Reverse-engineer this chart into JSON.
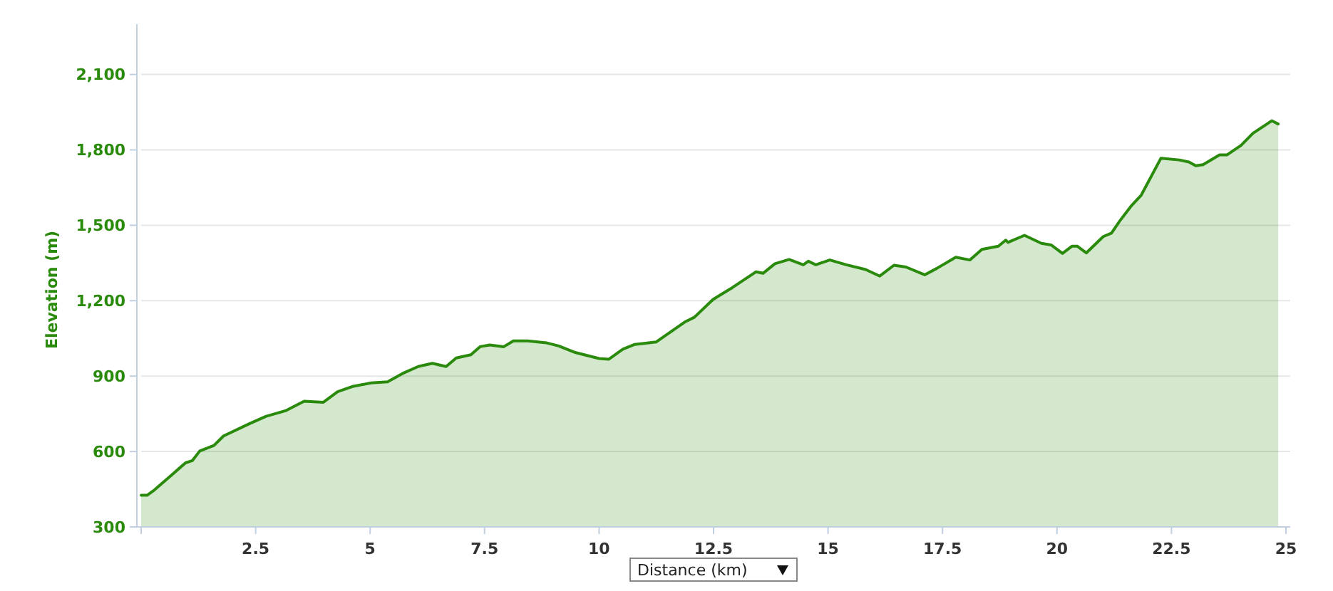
{
  "chart_data": {
    "type": "area",
    "xlabel": "Distance (km)",
    "ylabel": "Elevation (m)",
    "xlim": [
      0,
      25
    ],
    "xticks": [
      {
        "value": 0,
        "label": null
      },
      2.5,
      5,
      7.5,
      10,
      12.5,
      15,
      17.5,
      20,
      22.5,
      25
    ],
    "ylim": [
      300,
      2300
    ],
    "yticks": [
      {
        "value": 300,
        "label": "300"
      },
      {
        "value": 600,
        "label": "600"
      },
      {
        "value": 900,
        "label": "900"
      },
      {
        "value": 1200,
        "label": "1,200"
      },
      {
        "value": 1500,
        "label": "1,500"
      },
      {
        "value": 1800,
        "label": "1,800"
      },
      {
        "value": 2100,
        "label": "2,100"
      }
    ],
    "grid": "y",
    "x": [
      0,
      0.13,
      0.29,
      0.65,
      0.97,
      1.12,
      1.28,
      1.59,
      1.8,
      2.37,
      2.73,
      3.15,
      3.56,
      3.98,
      4.29,
      4.6,
      5.02,
      5.38,
      5.74,
      6.05,
      6.36,
      6.66,
      6.88,
      7.2,
      7.4,
      7.61,
      7.92,
      8.13,
      8.44,
      8.86,
      9.12,
      9.48,
      10,
      10.21,
      10.52,
      10.78,
      11.25,
      11.87,
      12.08,
      12.49,
      12.91,
      13.43,
      13.58,
      13.84,
      14.15,
      14.46,
      14.57,
      14.73,
      15.04,
      15.4,
      15.82,
      16.13,
      16.44,
      16.7,
      17.11,
      17.37,
      17.79,
      18.1,
      18.36,
      18.72,
      18.88,
      18.93,
      19.29,
      19.66,
      19.87,
      20.12,
      20.33,
      20.44,
      20.64,
      21.01,
      21.19,
      21.37,
      21.63,
      21.84,
      22.27,
      22.67,
      22.88,
      23.03,
      23.19,
      23.55,
      23.71,
      24.02,
      24.28,
      24.69,
      24.83
    ],
    "series": [
      {
        "color": "#2a8a0c",
        "values": [
          426,
          426,
          447,
          504,
          555,
          564,
          602,
          624,
          662,
          711,
          740,
          762,
          800,
          796,
          838,
          858,
          873,
          877,
          913,
          938,
          951,
          938,
          972,
          985,
          1017,
          1024,
          1017,
          1040,
          1040,
          1032,
          1020,
          994,
          970,
          967,
          1007,
          1026,
          1036,
          1115,
          1134,
          1205,
          1252,
          1315,
          1309,
          1347,
          1364,
          1343,
          1357,
          1343,
          1362,
          1343,
          1324,
          1298,
          1341,
          1334,
          1303,
          1328,
          1373,
          1362,
          1404,
          1417,
          1441,
          1432,
          1460,
          1428,
          1422,
          1388,
          1417,
          1417,
          1390,
          1455,
          1469,
          1517,
          1579,
          1620,
          1767,
          1760,
          1752,
          1737,
          1741,
          1780,
          1780,
          1818,
          1866,
          1916,
          1903
        ]
      }
    ]
  }
}
